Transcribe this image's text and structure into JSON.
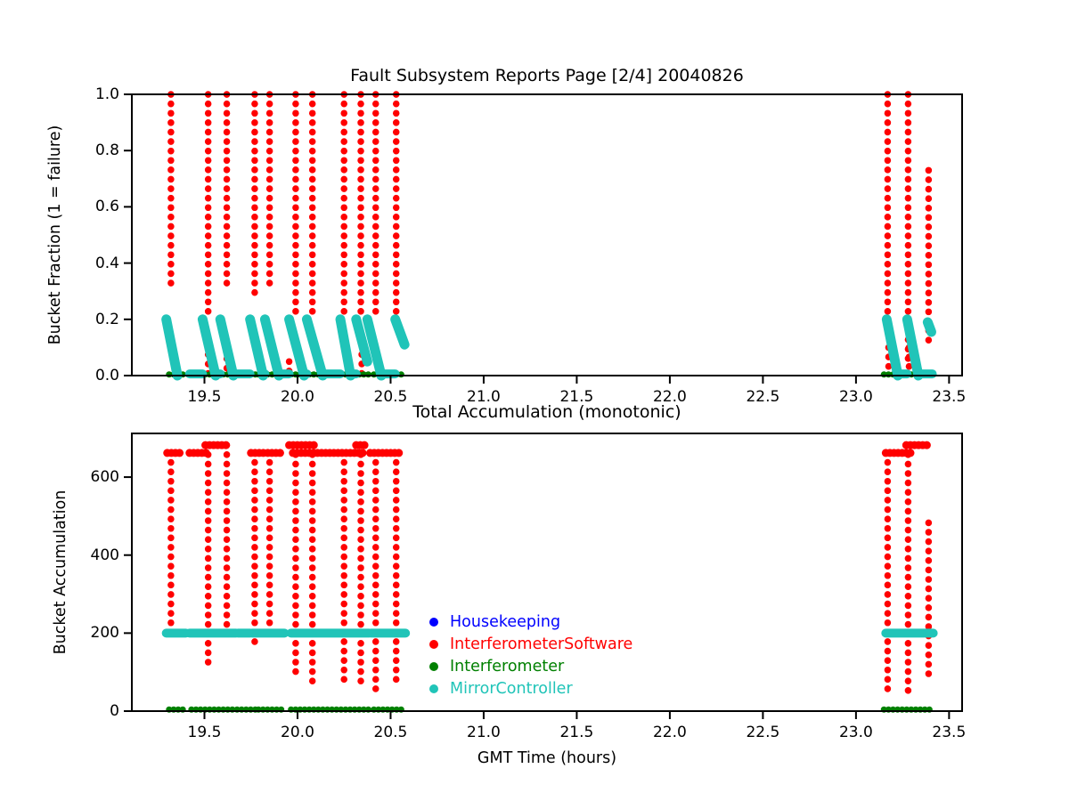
{
  "figure": {
    "background": "#ffffff"
  },
  "chart_data": [
    {
      "type": "scatter",
      "title": "Fault Subsystem Reports Page [2/4] 20040826",
      "xlabel": "",
      "ylabel": "Bucket Fraction (1 = failure)",
      "xlim": [
        19.11,
        23.57
      ],
      "ylim": [
        0.0,
        1.0
      ],
      "grid": false,
      "xticks": [
        {
          "v": 19.5,
          "label": "19.5"
        },
        {
          "v": 20.0,
          "label": "20.0"
        },
        {
          "v": 20.5,
          "label": "20.5"
        },
        {
          "v": 21.0,
          "label": "21.0"
        },
        {
          "v": 21.5,
          "label": "21.5"
        },
        {
          "v": 22.0,
          "label": "22.0"
        },
        {
          "v": 22.5,
          "label": "22.5"
        },
        {
          "v": 23.0,
          "label": "23.0"
        },
        {
          "v": 23.5,
          "label": "23.5"
        }
      ],
      "yticks": [
        {
          "v": 0.0,
          "label": "0.0"
        },
        {
          "v": 0.2,
          "label": "0.2"
        },
        {
          "v": 0.4,
          "label": "0.4"
        },
        {
          "v": 0.6,
          "label": "0.6"
        },
        {
          "v": 0.8,
          "label": "0.8"
        },
        {
          "v": 1.0,
          "label": "1.0"
        }
      ],
      "series": [
        {
          "name": "Housekeeping",
          "color": "#0000ff",
          "columns": [],
          "streaks": [],
          "runs": []
        },
        {
          "name": "InterferometerSoftware",
          "color": "#ff0000",
          "columns": [
            {
              "x": 19.32,
              "y0": 0.31,
              "y1": 1.0
            },
            {
              "x": 19.52,
              "y0": 0.21,
              "y1": 1.0
            },
            {
              "x": 19.62,
              "y0": 0.31,
              "y1": 1.0
            },
            {
              "x": 19.77,
              "y0": 0.28,
              "y1": 1.0
            },
            {
              "x": 19.85,
              "y0": 0.31,
              "y1": 1.0
            },
            {
              "x": 19.99,
              "y0": 0.21,
              "y1": 1.0
            },
            {
              "x": 20.08,
              "y0": 0.21,
              "y1": 1.0
            },
            {
              "x": 20.25,
              "y0": 0.21,
              "y1": 1.0
            },
            {
              "x": 20.34,
              "y0": 0.21,
              "y1": 1.0
            },
            {
              "x": 20.42,
              "y0": 0.2,
              "y1": 1.0
            },
            {
              "x": 20.53,
              "y0": 0.2,
              "y1": 1.0
            },
            {
              "x": 23.17,
              "y0": 0.2,
              "y1": 1.0
            },
            {
              "x": 23.28,
              "y0": 0.05,
              "y1": 1.0
            },
            {
              "x": 23.39,
              "y0": 0.12,
              "y1": 0.73
            },
            {
              "x": 19.52,
              "y0": 0.0,
              "y1": 0.075
            },
            {
              "x": 19.62,
              "y0": 0.0,
              "y1": 0.06
            },
            {
              "x": 19.955,
              "y0": 0.0,
              "y1": 0.05
            },
            {
              "x": 20.345,
              "y0": 0.0,
              "y1": 0.075
            },
            {
              "x": 23.175,
              "y0": 0.0,
              "y1": 0.1
            },
            {
              "x": 23.285,
              "y0": 0.0,
              "y1": 0.1
            }
          ],
          "streaks": [],
          "runs": []
        },
        {
          "name": "Interferometer",
          "color": "#008000",
          "columns": [],
          "streaks": [],
          "runs": [
            {
              "x0": 19.31,
              "x1": 19.4,
              "y": 0.004
            },
            {
              "x0": 19.43,
              "x1": 19.665,
              "y": 0.004
            },
            {
              "x0": 19.675,
              "x1": 19.785,
              "y": 0.004
            },
            {
              "x0": 19.79,
              "x1": 19.925,
              "y": 0.004
            },
            {
              "x0": 19.965,
              "x1": 20.395,
              "y": 0.004
            },
            {
              "x0": 20.41,
              "x1": 20.57,
              "y": 0.004
            },
            {
              "x0": 23.15,
              "x1": 23.4,
              "y": 0.004
            }
          ]
        },
        {
          "name": "MirrorController",
          "color": "#20c4b8",
          "columns": [],
          "streaks": [
            {
              "x0": 19.295,
              "y0": 0.2,
              "x1": 19.355,
              "y1": 0.0
            },
            {
              "x0": 19.49,
              "y0": 0.2,
              "x1": 19.56,
              "y1": 0.0
            },
            {
              "x0": 19.585,
              "y0": 0.2,
              "x1": 19.655,
              "y1": 0.0
            },
            {
              "x0": 19.745,
              "y0": 0.2,
              "x1": 19.815,
              "y1": 0.0
            },
            {
              "x0": 19.825,
              "y0": 0.2,
              "x1": 19.9,
              "y1": 0.0
            },
            {
              "x0": 19.955,
              "y0": 0.2,
              "x1": 20.035,
              "y1": 0.0
            },
            {
              "x0": 20.05,
              "y0": 0.2,
              "x1": 20.135,
              "y1": 0.0
            },
            {
              "x0": 20.23,
              "y0": 0.2,
              "x1": 20.285,
              "y1": 0.0
            },
            {
              "x0": 20.315,
              "y0": 0.2,
              "x1": 20.375,
              "y1": 0.05
            },
            {
              "x0": 20.375,
              "y0": 0.2,
              "x1": 20.45,
              "y1": 0.0
            },
            {
              "x0": 20.525,
              "y0": 0.2,
              "x1": 20.575,
              "y1": 0.11
            },
            {
              "x0": 23.165,
              "y0": 0.2,
              "x1": 23.225,
              "y1": 0.0
            },
            {
              "x0": 23.275,
              "y0": 0.2,
              "x1": 23.335,
              "y1": 0.0
            },
            {
              "x0": 23.385,
              "y0": 0.19,
              "x1": 23.405,
              "y1": 0.155
            }
          ],
          "runs": [
            {
              "x0": 19.42,
              "x1": 19.49,
              "y": 0.006
            },
            {
              "x0": 19.56,
              "x1": 19.585,
              "y": 0.006
            },
            {
              "x0": 19.655,
              "x1": 19.745,
              "y": 0.006
            },
            {
              "x0": 19.815,
              "x1": 19.825,
              "y": 0.006
            },
            {
              "x0": 19.9,
              "x1": 19.955,
              "y": 0.006
            },
            {
              "x0": 20.035,
              "x1": 20.05,
              "y": 0.006
            },
            {
              "x0": 20.135,
              "x1": 20.23,
              "y": 0.006
            },
            {
              "x0": 20.285,
              "x1": 20.315,
              "y": 0.006
            },
            {
              "x0": 20.45,
              "x1": 20.525,
              "y": 0.006
            },
            {
              "x0": 23.225,
              "x1": 23.275,
              "y": 0.006
            },
            {
              "x0": 23.335,
              "x1": 23.41,
              "y": 0.006
            }
          ]
        }
      ]
    },
    {
      "type": "scatter",
      "title": "Total Accumulation (monotonic)",
      "xlabel": "GMT Time (hours)",
      "ylabel": "Bucket Accumulation",
      "xlim": [
        19.11,
        23.57
      ],
      "ylim": [
        0,
        712
      ],
      "grid": false,
      "xticks": [
        {
          "v": 19.5,
          "label": "19.5"
        },
        {
          "v": 20.0,
          "label": "20.0"
        },
        {
          "v": 20.5,
          "label": "20.5"
        },
        {
          "v": 21.0,
          "label": "21.0"
        },
        {
          "v": 21.5,
          "label": "21.5"
        },
        {
          "v": 22.0,
          "label": "22.0"
        },
        {
          "v": 22.5,
          "label": "22.5"
        },
        {
          "v": 23.0,
          "label": "23.0"
        },
        {
          "v": 23.5,
          "label": "23.5"
        }
      ],
      "yticks": [
        {
          "v": 0,
          "label": "0"
        },
        {
          "v": 200,
          "label": "200"
        },
        {
          "v": 400,
          "label": "400"
        },
        {
          "v": 600,
          "label": "600"
        }
      ],
      "legend": {
        "position": "center",
        "items": [
          {
            "label": "Housekeeping",
            "color": "#0000ff"
          },
          {
            "label": "InterferometerSoftware",
            "color": "#ff0000"
          },
          {
            "label": "Interferometer",
            "color": "#008000"
          },
          {
            "label": "MirrorController",
            "color": "#20c4b8"
          }
        ]
      },
      "series": [
        {
          "name": "Housekeeping",
          "color": "#0000ff",
          "columns": [],
          "runs": [],
          "caps": []
        },
        {
          "name": "InterferometerSoftware",
          "color": "#ff0000",
          "columns": [
            {
              "x": 19.32,
              "y0": 200,
              "y1": 662
            },
            {
              "x": 19.52,
              "y0": 107,
              "y1": 682
            },
            {
              "x": 19.62,
              "y0": 200,
              "y1": 682
            },
            {
              "x": 19.77,
              "y0": 173,
              "y1": 662
            },
            {
              "x": 19.85,
              "y0": 200,
              "y1": 662
            },
            {
              "x": 19.99,
              "y0": 93,
              "y1": 682
            },
            {
              "x": 20.08,
              "y0": 73,
              "y1": 682
            },
            {
              "x": 20.25,
              "y0": 62,
              "y1": 662
            },
            {
              "x": 20.34,
              "y0": 62,
              "y1": 682
            },
            {
              "x": 20.42,
              "y0": 50,
              "y1": 662
            },
            {
              "x": 20.53,
              "y0": 73,
              "y1": 662
            },
            {
              "x": 23.17,
              "y0": 35,
              "y1": 662
            },
            {
              "x": 23.28,
              "y0": 35,
              "y1": 682
            },
            {
              "x": 23.39,
              "y0": 75,
              "y1": 483
            }
          ],
          "caps": [
            {
              "x0": 19.3,
              "x1": 19.385,
              "y": 662
            },
            {
              "x0": 19.42,
              "x1": 19.53,
              "y": 662
            },
            {
              "x0": 19.75,
              "x1": 19.83,
              "y": 662
            },
            {
              "x0": 19.84,
              "x1": 19.91,
              "y": 662
            },
            {
              "x0": 19.975,
              "x1": 20.35,
              "y": 662
            },
            {
              "x0": 20.39,
              "x1": 20.56,
              "y": 662
            },
            {
              "x0": 23.16,
              "x1": 23.3,
              "y": 662
            },
            {
              "x0": 19.505,
              "x1": 19.625,
              "y": 682
            },
            {
              "x0": 19.955,
              "x1": 20.095,
              "y": 682
            },
            {
              "x0": 20.315,
              "x1": 20.38,
              "y": 682
            },
            {
              "x0": 23.27,
              "x1": 23.4,
              "y": 682
            }
          ],
          "runs": []
        },
        {
          "name": "Interferometer",
          "color": "#008000",
          "columns": [],
          "caps": [],
          "runs": [
            {
              "x0": 19.31,
              "x1": 19.4,
              "y": 4
            },
            {
              "x0": 19.43,
              "x1": 19.665,
              "y": 4
            },
            {
              "x0": 19.675,
              "x1": 19.785,
              "y": 4
            },
            {
              "x0": 19.79,
              "x1": 19.925,
              "y": 4
            },
            {
              "x0": 19.965,
              "x1": 20.395,
              "y": 4
            },
            {
              "x0": 20.41,
              "x1": 20.57,
              "y": 4
            },
            {
              "x0": 23.15,
              "x1": 23.4,
              "y": 4
            }
          ]
        },
        {
          "name": "MirrorController",
          "color": "#20c4b8",
          "columns": [],
          "caps": [],
          "runs": [
            {
              "x0": 19.295,
              "x1": 19.4,
              "y": 200
            },
            {
              "x0": 19.42,
              "x1": 19.67,
              "y": 200
            },
            {
              "x0": 19.68,
              "x1": 19.745,
              "y": 200
            },
            {
              "x0": 19.755,
              "x1": 19.93,
              "y": 200
            },
            {
              "x0": 19.965,
              "x1": 20.385,
              "y": 200
            },
            {
              "x0": 20.395,
              "x1": 20.58,
              "y": 200
            },
            {
              "x0": 23.16,
              "x1": 23.415,
              "y": 200
            }
          ]
        }
      ]
    }
  ]
}
